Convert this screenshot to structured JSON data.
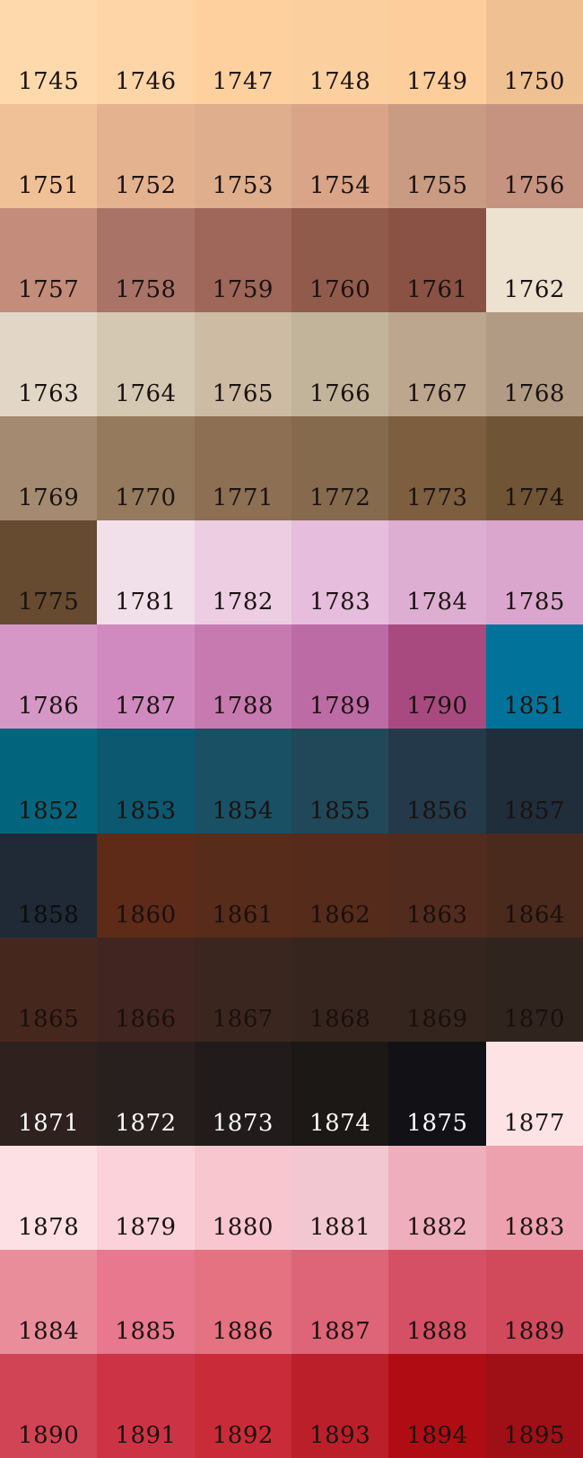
{
  "swatches": [
    {
      "code": "1745",
      "color": "#fdd9ac",
      "text": "#1a1210"
    },
    {
      "code": "1746",
      "color": "#fdd5a6",
      "text": "#1a1210"
    },
    {
      "code": "1747",
      "color": "#fdd09e",
      "text": "#1a1210"
    },
    {
      "code": "1748",
      "color": "#fccf9e",
      "text": "#1a1210"
    },
    {
      "code": "1749",
      "color": "#fdcd9c",
      "text": "#1a1210"
    },
    {
      "code": "1750",
      "color": "#efc092",
      "text": "#1a1210"
    },
    {
      "code": "1751",
      "color": "#f0c196",
      "text": "#1a1210"
    },
    {
      "code": "1752",
      "color": "#e5b28f",
      "text": "#1a1210"
    },
    {
      "code": "1753",
      "color": "#deae8d",
      "text": "#1a1210"
    },
    {
      "code": "1754",
      "color": "#d9a487",
      "text": "#1a1210"
    },
    {
      "code": "1755",
      "color": "#c99b83",
      "text": "#1a1210"
    },
    {
      "code": "1756",
      "color": "#c79381",
      "text": "#1a1210"
    },
    {
      "code": "1757",
      "color": "#c48c7a",
      "text": "#1a1210"
    },
    {
      "code": "1758",
      "color": "#a97368",
      "text": "#1a1210"
    },
    {
      "code": "1759",
      "color": "#9e675a",
      "text": "#1a1210"
    },
    {
      "code": "1760",
      "color": "#915b4c",
      "text": "#1a1210"
    },
    {
      "code": "1761",
      "color": "#8a5244",
      "text": "#1a1210"
    },
    {
      "code": "1762",
      "color": "#ede1d0",
      "text": "#1a1210"
    },
    {
      "code": "1763",
      "color": "#e2d7c6",
      "text": "#1a1210"
    },
    {
      "code": "1764",
      "color": "#d5c8b3",
      "text": "#1a1210"
    },
    {
      "code": "1765",
      "color": "#cdbba4",
      "text": "#1a1210"
    },
    {
      "code": "1766",
      "color": "#c2b39b",
      "text": "#1a1210"
    },
    {
      "code": "1767",
      "color": "#bca68e",
      "text": "#1a1210"
    },
    {
      "code": "1768",
      "color": "#b19b84",
      "text": "#1a1210"
    },
    {
      "code": "1769",
      "color": "#a48a70",
      "text": "#1a1210"
    },
    {
      "code": "1770",
      "color": "#957a5d",
      "text": "#1a1210"
    },
    {
      "code": "1771",
      "color": "#8d6f53",
      "text": "#1a1210"
    },
    {
      "code": "1772",
      "color": "#866a4d",
      "text": "#1a1210"
    },
    {
      "code": "1773",
      "color": "#7d5f40",
      "text": "#1a1210"
    },
    {
      "code": "1774",
      "color": "#705436",
      "text": "#1a1210"
    },
    {
      "code": "1775",
      "color": "#664b31",
      "text": "#1a1210"
    },
    {
      "code": "1781",
      "color": "#f1dfe9",
      "text": "#1a1210"
    },
    {
      "code": "1782",
      "color": "#eccde2",
      "text": "#1a1210"
    },
    {
      "code": "1783",
      "color": "#e6bddc",
      "text": "#1a1210"
    },
    {
      "code": "1784",
      "color": "#ddaed1",
      "text": "#1a1210"
    },
    {
      "code": "1785",
      "color": "#dba6cd",
      "text": "#1a1210"
    },
    {
      "code": "1786",
      "color": "#d598c6",
      "text": "#1a1210"
    },
    {
      "code": "1787",
      "color": "#d08ac0",
      "text": "#1a1210"
    },
    {
      "code": "1788",
      "color": "#c77ab0",
      "text": "#1a1210"
    },
    {
      "code": "1789",
      "color": "#bd6ba5",
      "text": "#1a1210"
    },
    {
      "code": "1790",
      "color": "#a84a80",
      "text": "#1a1210"
    },
    {
      "code": "1851",
      "color": "#01739a",
      "text": "#1a1210"
    },
    {
      "code": "1852",
      "color": "#03647e",
      "text": "#1a1210"
    },
    {
      "code": "1853",
      "color": "#0b5870",
      "text": "#1a1210"
    },
    {
      "code": "1854",
      "color": "#1a5064",
      "text": "#1a1210"
    },
    {
      "code": "1855",
      "color": "#214859",
      "text": "#1a1210"
    },
    {
      "code": "1856",
      "color": "#24394a",
      "text": "#1a1210"
    },
    {
      "code": "1857",
      "color": "#202d3b",
      "text": "#1a1210"
    },
    {
      "code": "1858",
      "color": "#1f2a36",
      "text": "#0e0c0c"
    },
    {
      "code": "1860",
      "color": "#5d2b18",
      "text": "#1a0f0c"
    },
    {
      "code": "1861",
      "color": "#582c1a",
      "text": "#1a0f0c"
    },
    {
      "code": "1862",
      "color": "#552b1b",
      "text": "#1a0f0c"
    },
    {
      "code": "1863",
      "color": "#512b1e",
      "text": "#1a0f0c"
    },
    {
      "code": "1864",
      "color": "#4b2a1e",
      "text": "#1a0f0c"
    },
    {
      "code": "1865",
      "color": "#46271d",
      "text": "#1a0f0c"
    },
    {
      "code": "1866",
      "color": "#402520",
      "text": "#1a0f0c"
    },
    {
      "code": "1867",
      "color": "#3b261f",
      "text": "#1a0f0c"
    },
    {
      "code": "1868",
      "color": "#36241e",
      "text": "#1a0f0c"
    },
    {
      "code": "1869",
      "color": "#34251f",
      "text": "#1a0f0c"
    },
    {
      "code": "1870",
      "color": "#30241f",
      "text": "#1a0f0c"
    },
    {
      "code": "1871",
      "color": "#2e211e",
      "text": "#ffffff"
    },
    {
      "code": "1872",
      "color": "#28201f",
      "text": "#ffffff"
    },
    {
      "code": "1873",
      "color": "#211c1b",
      "text": "#ffffff"
    },
    {
      "code": "1874",
      "color": "#1c1816",
      "text": "#ffffff"
    },
    {
      "code": "1875",
      "color": "#121116",
      "text": "#ffffff"
    },
    {
      "code": "1877",
      "color": "#fde3e4",
      "text": "#1a1210"
    },
    {
      "code": "1878",
      "color": "#fde0e3",
      "text": "#1a1210"
    },
    {
      "code": "1879",
      "color": "#fbd2d9",
      "text": "#1a1210"
    },
    {
      "code": "1880",
      "color": "#f8c6cf",
      "text": "#1a1210"
    },
    {
      "code": "1881",
      "color": "#f3c7d1",
      "text": "#1a1210"
    },
    {
      "code": "1882",
      "color": "#efaebb",
      "text": "#1a1210"
    },
    {
      "code": "1883",
      "color": "#eda1af",
      "text": "#1a1210"
    },
    {
      "code": "1884",
      "color": "#ea8d9b",
      "text": "#1a1210"
    },
    {
      "code": "1885",
      "color": "#e7788d",
      "text": "#1a1210"
    },
    {
      "code": "1886",
      "color": "#e47281",
      "text": "#1a1210"
    },
    {
      "code": "1887",
      "color": "#de6577",
      "text": "#1a1210"
    },
    {
      "code": "1888",
      "color": "#d55064",
      "text": "#1a1210"
    },
    {
      "code": "1889",
      "color": "#d04a5c",
      "text": "#1a1210"
    },
    {
      "code": "1890",
      "color": "#d14455",
      "text": "#1a1210"
    },
    {
      "code": "1891",
      "color": "#cc3446",
      "text": "#1a1210"
    },
    {
      "code": "1892",
      "color": "#c92c38",
      "text": "#1a1210"
    },
    {
      "code": "1893",
      "color": "#bb1f2a",
      "text": "#1a1210"
    },
    {
      "code": "1894",
      "color": "#b00c14",
      "text": "#1a1210"
    },
    {
      "code": "1895",
      "color": "#9f0f16",
      "text": "#1a1210"
    }
  ]
}
